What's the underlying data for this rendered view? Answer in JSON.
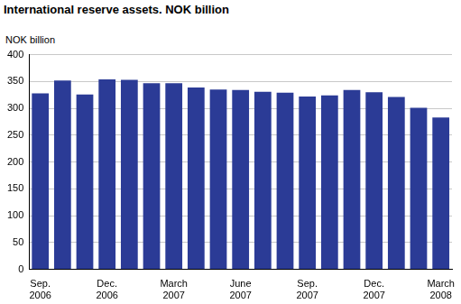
{
  "chart_data": {
    "type": "bar",
    "title": "International reserve assets. NOK billion",
    "y_label": "NOK billion",
    "categories": [
      "Sep. 2006",
      null,
      null,
      "Dec. 2006",
      null,
      null,
      "March 2007",
      null,
      null,
      "June 2007",
      null,
      null,
      "Sep. 2007",
      null,
      null,
      "Dec. 2007",
      null,
      null,
      "March 2008"
    ],
    "values": [
      328,
      352,
      326,
      354,
      353,
      347,
      347,
      339,
      335,
      334,
      331,
      329,
      322,
      324,
      334,
      330,
      321,
      301,
      283
    ],
    "color": "#2b3b96",
    "ylim": [
      0,
      400
    ],
    "yticks": [
      0,
      50,
      100,
      150,
      200,
      250,
      300,
      350,
      400
    ],
    "grid": true
  }
}
